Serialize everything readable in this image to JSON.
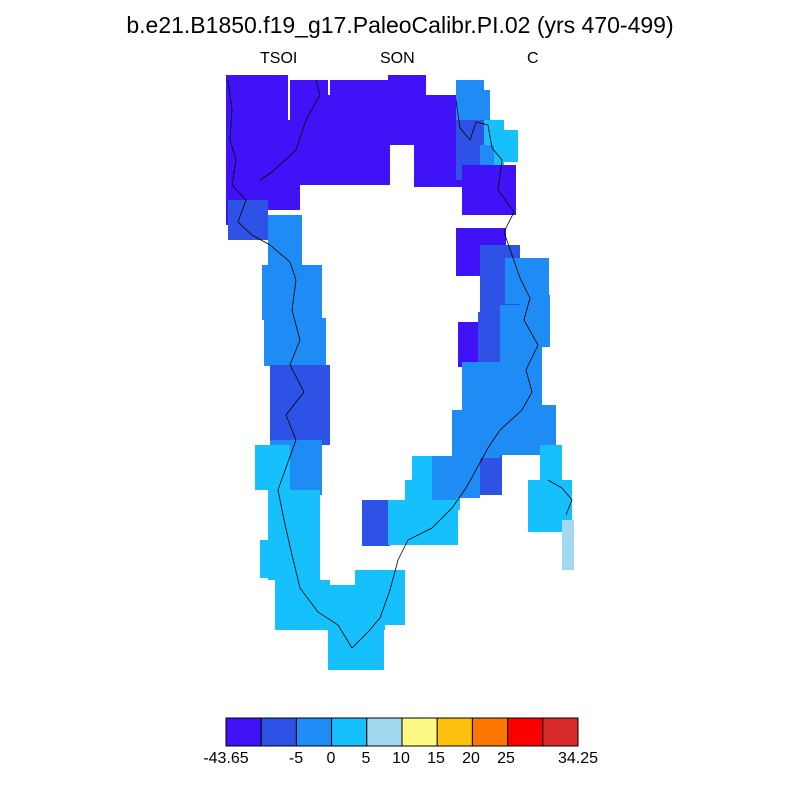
{
  "title": "b.e21.B1850.f19_g17.PaleoCalibr.PI.02 (yrs 470-499)",
  "labels": {
    "left": "TSOI",
    "center": "SON",
    "right": "C"
  },
  "colorbar": {
    "colors": [
      "#3f12f7",
      "#2d52e5",
      "#1f8cf5",
      "#16c0fc",
      "#a3d8f1",
      "#fdf982",
      "#fbc10d",
      "#fb7701",
      "#fa0001",
      "#d8292b"
    ],
    "tick_labels": [
      "-43.65",
      "-5",
      "0",
      "5",
      "10",
      "15",
      "20",
      "25",
      "34.25"
    ]
  },
  "palette": {
    "c1": "#3f12f7",
    "c2": "#2d52e5",
    "c3": "#1f8cf5",
    "c4": "#16c0fc",
    "c5": "#a3d8f1"
  }
}
